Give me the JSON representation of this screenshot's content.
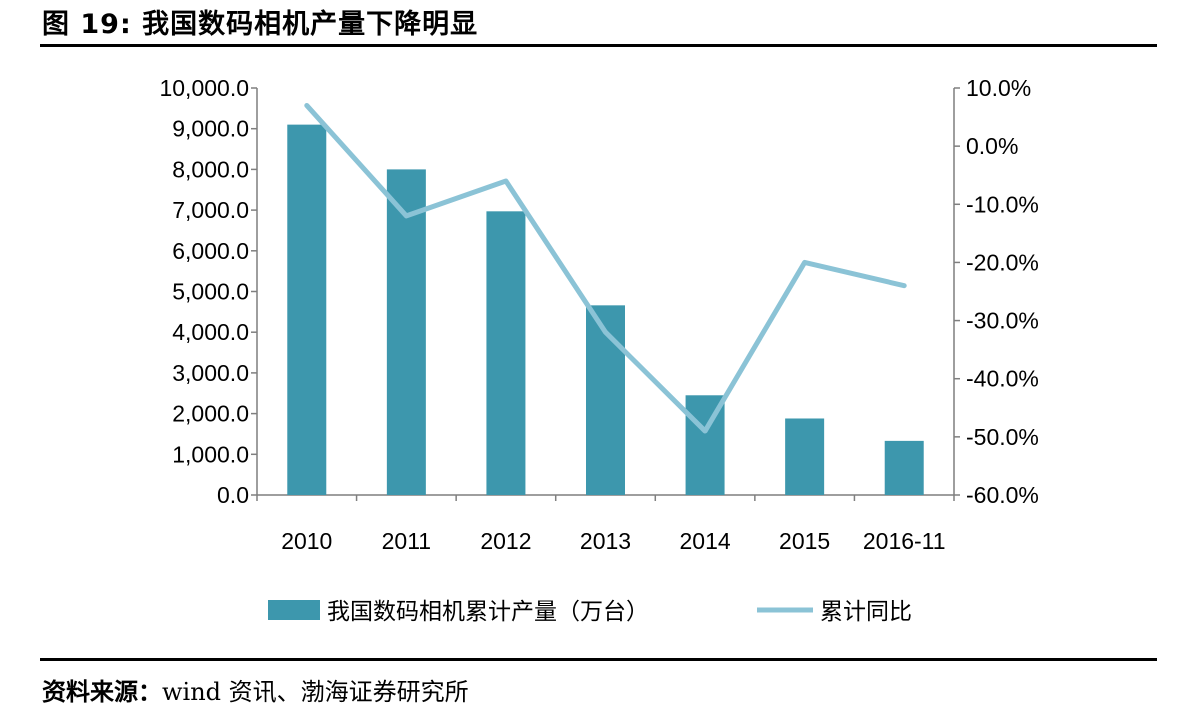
{
  "figure": {
    "title": "图 19:  我国数码相机产量下降明显",
    "source_label": "资料来源：",
    "source_text": "wind 资讯、渤海证券研究所"
  },
  "colors": {
    "bar": "#3d97ad",
    "line": "#8bc3d6",
    "axis": "#7f7f7f"
  },
  "chart_data": {
    "type": "bar",
    "categories": [
      "2010",
      "2011",
      "2012",
      "2013",
      "2014",
      "2015",
      "2016-11"
    ],
    "series": [
      {
        "name": "我国数码相机累计产量（万台）",
        "type": "bar",
        "axis": "left",
        "values": [
          9100,
          8000,
          6970,
          4660,
          2450,
          1880,
          1330
        ]
      },
      {
        "name": "累计同比",
        "type": "line",
        "axis": "right",
        "values": [
          7.0,
          -12.0,
          -6.0,
          -32.0,
          -49.0,
          -20.0,
          -24.0
        ]
      }
    ],
    "y_left": {
      "range": [
        0,
        10000
      ],
      "ticks": [
        "0.0",
        "1,000.0",
        "2,000.0",
        "3,000.0",
        "4,000.0",
        "5,000.0",
        "6,000.0",
        "7,000.0",
        "8,000.0",
        "9,000.0",
        "10,000.0"
      ]
    },
    "y_right": {
      "range": [
        -60,
        10
      ],
      "ticks": [
        "-60.0%",
        "-50.0%",
        "-40.0%",
        "-30.0%",
        "-20.0%",
        "-10.0%",
        "0.0%",
        "10.0%"
      ]
    },
    "grid": false,
    "legend": "bottom"
  }
}
